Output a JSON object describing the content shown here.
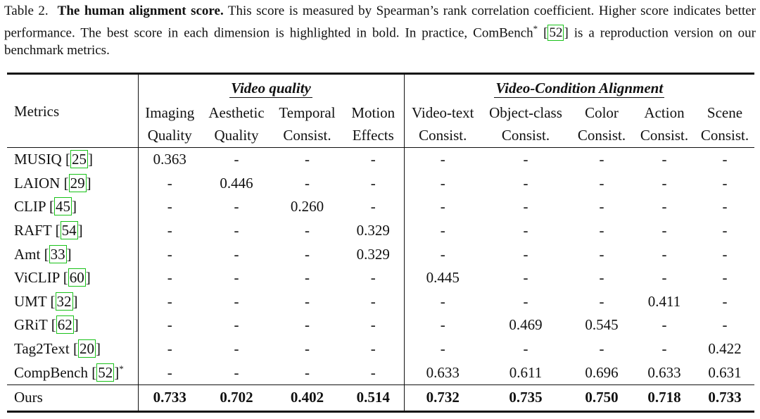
{
  "caption": {
    "label": "Table 2.",
    "bold_title": "The human alignment score.",
    "text_before_cite": " This score is measured by Spearman’s rank correlation coefficient. Higher score indicates better performance. The best score in each dimension is highlighted in bold. In practice, ComBench",
    "star": "*",
    "cite": "52",
    "text_after_cite": " is a reproduction version on our benchmark metrics."
  },
  "table": {
    "groups": [
      "Video quality",
      "Video-Condition Alignment"
    ],
    "first_col_header": "Metrics",
    "col_headers": [
      [
        "Imaging",
        "Quality"
      ],
      [
        "Aesthetic",
        "Quality"
      ],
      [
        "Temporal",
        "Consist."
      ],
      [
        "Motion",
        "Effects"
      ],
      [
        "Video-text",
        "Consist."
      ],
      [
        "Object-class",
        "Consist."
      ],
      [
        "Color",
        "Consist."
      ],
      [
        "Action",
        "Consist."
      ],
      [
        "Scene",
        "Consist."
      ]
    ],
    "rows": [
      {
        "name": "MUSIQ",
        "cite": "25",
        "star": "",
        "values": [
          "0.363",
          "-",
          "-",
          "-",
          "-",
          "-",
          "-",
          "-",
          "-"
        ]
      },
      {
        "name": "LAION",
        "cite": "29",
        "star": "",
        "values": [
          "-",
          "0.446",
          "-",
          "-",
          "-",
          "-",
          "-",
          "-",
          "-"
        ]
      },
      {
        "name": "CLIP",
        "cite": "45",
        "star": "",
        "values": [
          "-",
          "-",
          "0.260",
          "-",
          "-",
          "-",
          "-",
          "-",
          "-"
        ]
      },
      {
        "name": "RAFT",
        "cite": "54",
        "star": "",
        "values": [
          "-",
          "-",
          "-",
          "0.329",
          "-",
          "-",
          "-",
          "-",
          "-"
        ]
      },
      {
        "name": "Amt",
        "cite": "33",
        "star": "",
        "values": [
          "-",
          "-",
          "-",
          "0.329",
          "-",
          "-",
          "-",
          "-",
          "-"
        ]
      },
      {
        "name": "ViCLIP",
        "cite": "60",
        "star": "",
        "values": [
          "-",
          "-",
          "-",
          "-",
          "0.445",
          "-",
          "-",
          "-",
          "-"
        ]
      },
      {
        "name": "UMT",
        "cite": "32",
        "star": "",
        "values": [
          "-",
          "-",
          "-",
          "-",
          "-",
          "-",
          "-",
          "0.411",
          "-"
        ]
      },
      {
        "name": "GRiT",
        "cite": "62",
        "star": "",
        "values": [
          "-",
          "-",
          "-",
          "-",
          "-",
          "0.469",
          "0.545",
          "-",
          "-"
        ]
      },
      {
        "name": "Tag2Text",
        "cite": "20",
        "star": "",
        "values": [
          "-",
          "-",
          "-",
          "-",
          "-",
          "-",
          "-",
          "-",
          "0.422"
        ]
      },
      {
        "name": "CompBench",
        "cite": "52",
        "star": "*",
        "values": [
          "-",
          "-",
          "-",
          "-",
          "0.633",
          "0.611",
          "0.696",
          "0.633",
          "0.631"
        ]
      }
    ],
    "ours": {
      "name": "Ours",
      "values": [
        "0.733",
        "0.702",
        "0.402",
        "0.514",
        "0.732",
        "0.735",
        "0.750",
        "0.718",
        "0.733"
      ]
    }
  }
}
